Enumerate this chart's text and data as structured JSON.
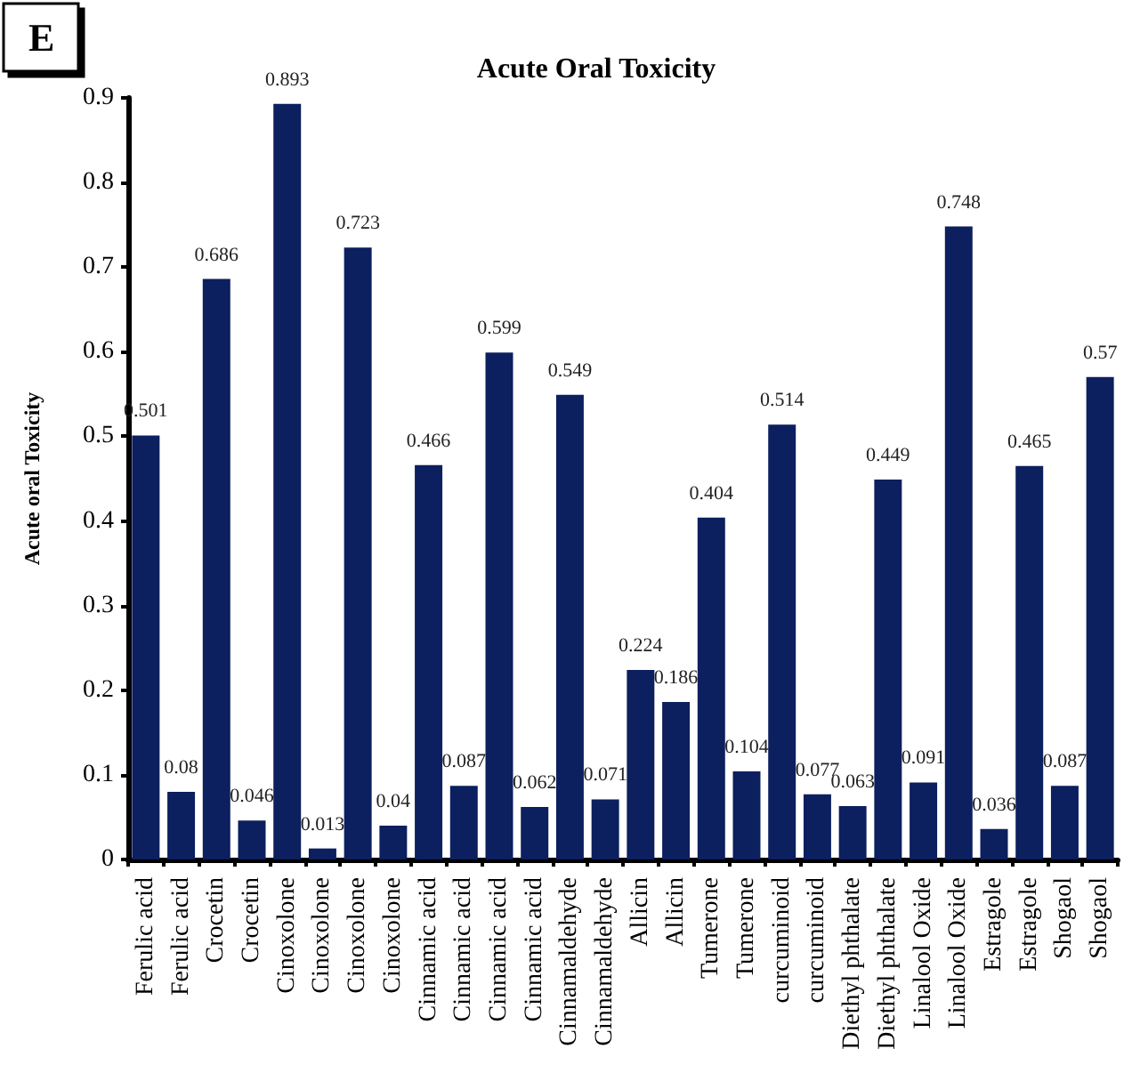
{
  "chart_data": {
    "type": "bar",
    "title": "Acute Oral Toxicity",
    "ylabel": "Acute oral Toxicity",
    "annotations": [
      "E"
    ],
    "categories": [
      "Ferulic acid",
      "Ferulic acid",
      "Crocetin",
      "Crocetin",
      "Cinoxolone",
      "Cinoxolone",
      "Cinoxolone",
      "Cinoxolone",
      "Cinnamic acid",
      "Cinnamic acid",
      "Cinnamic acid",
      "Cinnamic acid",
      "Cinnamaldehyde",
      "Cinnamaldehyde",
      "Allicin",
      "Allicin",
      "Tumerone",
      "Tumerone",
      "curcuminoid",
      "curcuminoid",
      "Diethyl phthalate",
      "Diethyl phthalate",
      "Linalool Oxide",
      "Linalool Oxide",
      "Estragole",
      "Estragole",
      "Shogaol",
      "Shogaol"
    ],
    "values": [
      0.501,
      0.08,
      0.686,
      0.046,
      0.893,
      0.013,
      0.723,
      0.04,
      0.466,
      0.087,
      0.599,
      0.062,
      0.549,
      0.071,
      0.224,
      0.186,
      0.404,
      0.104,
      0.514,
      0.077,
      0.063,
      0.449,
      0.091,
      0.748,
      0.036,
      0.465,
      0.087,
      0.57
    ],
    "color": "#0c1f5e",
    "ylim": [
      0,
      0.9
    ],
    "yticks": [
      0,
      0.1,
      0.2,
      0.3,
      0.4,
      0.5,
      0.6,
      0.7,
      0.8,
      0.9
    ],
    "grid": false,
    "data_labels": true
  }
}
